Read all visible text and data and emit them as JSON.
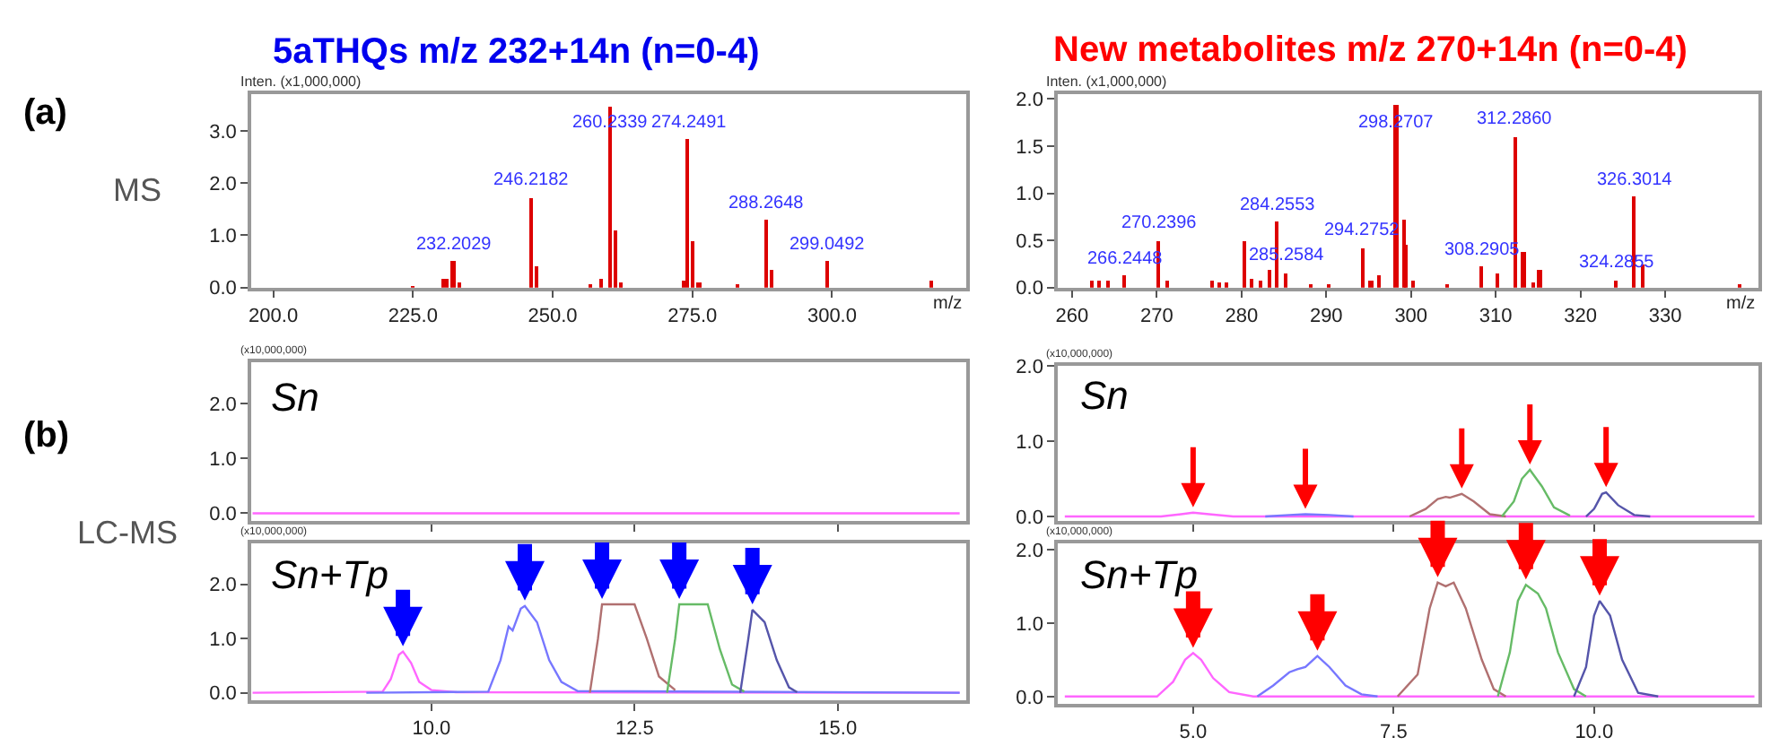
{
  "chart_data": [
    {
      "type": "bar",
      "title": "5aTHQs m/z 232+14n (n=0-4)",
      "ylabel": "Inten. (x1,000,000)",
      "xlabel": "m/z",
      "series": [
        {
          "color": "#dd0000",
          "x": [
            225.0,
            230.5,
            231.2,
            232.2029,
            233.2,
            246.2182,
            247.2,
            256.8,
            258.8,
            260.2339,
            261.2,
            262.2,
            273.4,
            274.2491,
            275.2,
            276.2,
            283.0,
            288.2648,
            289.3,
            299.0492,
            317.8
          ],
          "values": [
            0.02,
            0.15,
            0.18,
            0.5,
            0.1,
            1.72,
            0.41,
            0.05,
            0.17,
            3.47,
            1.1,
            0.11,
            0.14,
            2.83,
            0.89,
            0.1,
            0.05,
            1.3,
            0.33,
            0.5,
            0.14
          ]
        }
      ],
      "xlim": [
        196,
        324
      ],
      "xticks": [
        {
          "value": 200,
          "label": "200.0"
        },
        {
          "value": 225,
          "label": "225.0"
        },
        {
          "value": 250,
          "label": "250.0"
        },
        {
          "value": 275,
          "label": "275.0"
        },
        {
          "value": 300,
          "label": "300.0"
        }
      ],
      "ylim": [
        0,
        3.7
      ],
      "yticks": [
        {
          "value": 0,
          "label": "0.0"
        },
        {
          "value": 1,
          "label": "1.0"
        },
        {
          "value": 2,
          "label": "2.0"
        },
        {
          "value": 3,
          "label": "3.0"
        }
      ],
      "annotations": [
        {
          "text": "232.2029",
          "x": 232.2029,
          "y": 0.5
        },
        {
          "text": "246.2182",
          "x": 246.2182,
          "y": 1.72
        },
        {
          "text": "260.2339",
          "x": 260.2339,
          "y": 3.47
        },
        {
          "text": "274.2491",
          "x": 274.2491,
          "y": 2.83
        },
        {
          "text": "288.2648",
          "x": 288.2648,
          "y": 1.3
        },
        {
          "text": "299.0492",
          "x": 299.0492,
          "y": 0.5
        },
        "(a)",
        "MS"
      ]
    },
    {
      "type": "bar",
      "title": "New metabolites m/z 270+14n (n=0-4)",
      "ylabel": "Inten. (x1,000,000)",
      "xlabel": "m/z",
      "series": [
        {
          "color": "#dd0000",
          "x": [
            262.3,
            263.3,
            264.3,
            266.2448,
            270.2396,
            271.3,
            276.5,
            277.5,
            278.3,
            280.3,
            281.3,
            282.3,
            283.3,
            284.2553,
            285.2584,
            288.3,
            290.3,
            294.2752,
            295.3,
            296.3,
            298.2707,
            299.3,
            299.5,
            300.3,
            304.3,
            308.2905,
            310.3,
            312.286,
            313.3,
            314.4,
            315.2,
            324.2855,
            326.3014,
            327.3,
            338.8
          ],
          "values": [
            0.08,
            0.07,
            0.07,
            0.12,
            0.5,
            0.08,
            0.08,
            0.05,
            0.05,
            0.5,
            0.09,
            0.08,
            0.18,
            0.7,
            0.15,
            0.03,
            0.03,
            0.42,
            0.08,
            0.12,
            1.93,
            0.72,
            0.45,
            0.07,
            0.03,
            0.22,
            0.15,
            1.6,
            0.38,
            0.06,
            0.18,
            0.08,
            0.96,
            0.25,
            0.03
          ]
        }
      ],
      "xlim": [
        258.3,
        341
      ],
      "xticks": [
        260,
        270,
        280,
        290,
        300,
        310,
        320,
        330
      ],
      "ylim": [
        0,
        2.05
      ],
      "yticks": [
        {
          "value": 0,
          "label": "0.0"
        },
        {
          "value": 0.5,
          "label": "0.5"
        },
        {
          "value": 1,
          "label": "1.0"
        },
        {
          "value": 1.5,
          "label": "1.5"
        },
        {
          "value": 2,
          "label": "2.0"
        }
      ],
      "annotations": [
        {
          "text": "266.2448",
          "x": 266.2448,
          "y": 0.12
        },
        {
          "text": "270.2396",
          "x": 270.2396,
          "y": 0.5
        },
        {
          "text": "284.2553",
          "x": 284.2553,
          "y": 0.7
        },
        {
          "text": "285.2584",
          "x": 285.2584,
          "y": 0.15
        },
        {
          "text": "294.2752",
          "x": 294.2752,
          "y": 0.42
        },
        {
          "text": "298.2707",
          "x": 298.2707,
          "y": 1.93
        },
        {
          "text": "308.2905",
          "x": 308.2905,
          "y": 0.22
        },
        {
          "text": "312.2860",
          "x": 312.286,
          "y": 1.6
        },
        {
          "text": "324.2855",
          "x": 324.2855,
          "y": 0.08
        },
        {
          "text": "326.3014",
          "x": 326.3014,
          "y": 0.96
        }
      ]
    },
    {
      "type": "line",
      "ylabel": "(x10,000,000)",
      "tick_labels": "y",
      "series": [
        {
          "color": "#ff66ff",
          "x": [
            7.8,
            16.5
          ],
          "values": [
            0,
            0
          ]
        }
      ],
      "xlim": [
        7.78,
        16.58
      ],
      "xticks": [
        {
          "value": 10,
          "label": null
        },
        {
          "value": 12.5,
          "label": null
        },
        {
          "value": 15,
          "label": null
        }
      ],
      "ylim": [
        -0.14,
        2.75
      ],
      "yticks": [
        {
          "value": 0,
          "label": "0.0"
        },
        {
          "value": 1,
          "label": "1.0"
        },
        {
          "value": 2,
          "label": "2.0"
        }
      ],
      "annotations": [
        "Sn",
        "(b)",
        "LC-MS"
      ]
    },
    {
      "type": "line",
      "ylabel": "(x10,000,000)",
      "tick_labels": "y",
      "series": [
        {
          "color": "#ff66ff",
          "x": [
            3.4,
            4.6,
            4.85,
            5.0,
            5.2,
            5.5,
            12.0
          ],
          "values": [
            0,
            0,
            0.03,
            0.05,
            0.03,
            0,
            0
          ]
        },
        {
          "color": "#7777ff",
          "x": [
            5.9,
            6.2,
            6.4,
            6.7,
            7.0
          ],
          "values": [
            0,
            0.02,
            0.03,
            0.02,
            0
          ]
        },
        {
          "color": "#b07070",
          "x": [
            7.7,
            7.9,
            8.05,
            8.15,
            8.2,
            8.35,
            8.5,
            8.7,
            8.9
          ],
          "values": [
            0,
            0.1,
            0.23,
            0.26,
            0.25,
            0.3,
            0.2,
            0.03,
            0
          ]
        },
        {
          "color": "#66bb66",
          "x": [
            8.85,
            9.0,
            9.1,
            9.2,
            9.35,
            9.5,
            9.7
          ],
          "values": [
            0,
            0.2,
            0.5,
            0.62,
            0.4,
            0.12,
            0.01
          ]
        },
        {
          "color": "#5555aa",
          "x": [
            9.9,
            10.0,
            10.1,
            10.15,
            10.3,
            10.5,
            10.7
          ],
          "values": [
            0,
            0.1,
            0.3,
            0.32,
            0.15,
            0.02,
            0
          ]
        }
      ],
      "xlim": [
        3.31,
        12.05
      ],
      "xticks": [
        {
          "value": 5,
          "label": null
        },
        {
          "value": 7.5,
          "label": null
        },
        {
          "value": 10,
          "label": null
        }
      ],
      "ylim": [
        -0.06,
        2.0
      ],
      "yticks": [
        {
          "value": 0,
          "label": "0.0"
        },
        {
          "value": 1,
          "label": "1.0"
        },
        {
          "value": 2,
          "label": "2.0"
        }
      ],
      "annotations": [
        "Sn"
      ]
    },
    {
      "type": "line",
      "ylabel": "(x10,000,000)",
      "series": [
        {
          "color": "#ff66ff",
          "x": [
            7.8,
            9.4,
            9.5,
            9.6,
            9.65,
            9.75,
            9.85,
            10.0,
            10.3,
            16.5
          ],
          "values": [
            0,
            0.02,
            0.25,
            0.7,
            0.76,
            0.55,
            0.2,
            0.05,
            0.01,
            0
          ]
        },
        {
          "color": "#7777ff",
          "x": [
            9.2,
            10.7,
            10.85,
            10.95,
            11.0,
            11.1,
            11.15,
            11.3,
            11.45,
            11.6,
            11.8,
            16.5
          ],
          "values": [
            0,
            0.02,
            0.6,
            1.22,
            1.15,
            1.55,
            1.6,
            1.3,
            0.6,
            0.2,
            0.03,
            0
          ]
        },
        {
          "color": "#b07070",
          "x": [
            11.95,
            12.05,
            12.1,
            12.5,
            12.65,
            12.8,
            13.0
          ],
          "values": [
            0,
            1.0,
            1.63,
            1.63,
            1.0,
            0.3,
            0.05
          ]
        },
        {
          "color": "#66bb66",
          "x": [
            12.9,
            13.0,
            13.05,
            13.4,
            13.55,
            13.7,
            13.85
          ],
          "values": [
            0,
            1.0,
            1.63,
            1.63,
            0.8,
            0.15,
            0.02
          ]
        },
        {
          "color": "#5555aa",
          "x": [
            13.8,
            13.9,
            13.95,
            14.1,
            14.25,
            14.4,
            14.5
          ],
          "values": [
            0,
            1.0,
            1.53,
            1.3,
            0.6,
            0.1,
            0.01
          ]
        }
      ],
      "xlim": [
        7.78,
        16.58
      ],
      "xticks": [
        {
          "value": 10,
          "label": "10.0"
        },
        {
          "value": 12.5,
          "label": "12.5"
        },
        {
          "value": 15,
          "label": "15.0"
        }
      ],
      "ylim": [
        -0.14,
        2.75
      ],
      "yticks": [
        {
          "value": 0,
          "label": "0.0"
        },
        {
          "value": 1,
          "label": "1.0"
        },
        {
          "value": 2,
          "label": "2.0"
        }
      ],
      "annotations": [
        "Sn+Tp"
      ]
    },
    {
      "type": "line",
      "ylabel": "(x10,000,000)",
      "series": [
        {
          "color": "#ff66ff",
          "x": [
            3.4,
            4.55,
            4.75,
            4.9,
            5.0,
            5.1,
            5.25,
            5.45,
            5.75,
            12.0
          ],
          "values": [
            0,
            0,
            0.2,
            0.5,
            0.59,
            0.5,
            0.25,
            0.06,
            0,
            0
          ]
        },
        {
          "color": "#7777ff",
          "x": [
            5.8,
            6.0,
            6.2,
            6.3,
            6.4,
            6.55,
            6.7,
            6.9,
            7.1,
            7.3
          ],
          "values": [
            0,
            0.15,
            0.33,
            0.37,
            0.4,
            0.55,
            0.4,
            0.15,
            0.03,
            0
          ]
        },
        {
          "color": "#b07070",
          "x": [
            7.55,
            7.8,
            7.95,
            8.05,
            8.15,
            8.25,
            8.4,
            8.6,
            8.75,
            8.9
          ],
          "values": [
            0,
            0.3,
            1.2,
            1.55,
            1.5,
            1.55,
            1.2,
            0.5,
            0.1,
            0
          ]
        },
        {
          "color": "#66bb66",
          "x": [
            8.8,
            8.95,
            9.05,
            9.15,
            9.3,
            9.4,
            9.55,
            9.75,
            9.9
          ],
          "values": [
            0,
            0.6,
            1.3,
            1.52,
            1.4,
            1.2,
            0.6,
            0.1,
            0
          ]
        },
        {
          "color": "#5555aa",
          "x": [
            9.75,
            9.9,
            10.0,
            10.07,
            10.2,
            10.35,
            10.55,
            10.8
          ],
          "values": [
            0,
            0.4,
            1.1,
            1.3,
            1.1,
            0.5,
            0.05,
            0
          ]
        }
      ],
      "xlim": [
        3.31,
        12.05
      ],
      "xticks": [
        {
          "value": 5,
          "label": "5.0"
        },
        {
          "value": 7.5,
          "label": "7.5"
        },
        {
          "value": 10,
          "label": "10.0"
        }
      ],
      "ylim": [
        -0.1,
        2.08
      ],
      "yticks": [
        {
          "value": 0,
          "label": "0.0"
        },
        {
          "value": 1,
          "label": "1.0"
        },
        {
          "value": 2,
          "label": "2.0"
        }
      ],
      "annotations": [
        "Sn+Tp"
      ]
    }
  ]
}
